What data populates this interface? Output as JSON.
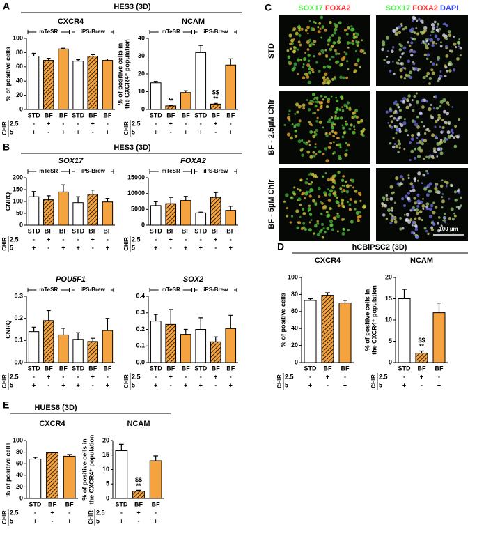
{
  "panels": [
    {
      "letter": "A",
      "title": "HES3 (3D)"
    },
    {
      "letter": "B",
      "title": "HES3 (3D)"
    },
    {
      "letter": "C"
    },
    {
      "letter": "D",
      "title": "hCBiPSC2 (3D)"
    },
    {
      "letter": "E",
      "title": "HUES8 (3D)"
    }
  ],
  "microscopy": {
    "columns": [
      [
        {
          "text": "SOX17",
          "color": "#55ee55"
        },
        {
          "text": "FOXA2",
          "color": "#ff3333"
        }
      ],
      [
        {
          "text": "SOX17",
          "color": "#55ee55"
        },
        {
          "text": "FOXA2",
          "color": "#ff3333"
        },
        {
          "text": "DAPI",
          "color": "#3344ff"
        }
      ]
    ],
    "rows": [
      "STD",
      "BF - 2.5µM Chir",
      "BF - 5µM Chir"
    ],
    "scale_bar": "100 µm"
  },
  "chart_data": [
    {
      "type": "bar",
      "title": "CXCR4",
      "ylabel": [
        "% of positive cells"
      ],
      "categories": [
        "STD",
        "BF",
        "BF",
        "STD",
        "BF",
        "BF"
      ],
      "values": [
        75,
        69,
        85,
        68,
        75,
        69
      ],
      "errors": [
        4,
        3,
        1,
        2,
        2,
        2
      ],
      "colors": [
        "#ffffff",
        "#f5a33f",
        "#f5a33f",
        "#ffffff",
        "#f5a33f",
        "#f5a33f"
      ],
      "hatched": [
        false,
        true,
        false,
        false,
        true,
        false
      ],
      "ylim": [
        0,
        100
      ],
      "yticks": [
        0,
        20,
        40,
        60,
        80,
        100
      ],
      "groups": [
        {
          "name": "mTeSR",
          "span": [
            0,
            2
          ]
        },
        {
          "name": "iPS-Brew",
          "span": [
            3,
            5
          ]
        }
      ],
      "conditions": {
        "label": "CHIR",
        "rows": [
          {
            "name": "2.5",
            "marks": [
              "-",
              "+",
              "-",
              "-",
              "+",
              "-"
            ]
          },
          {
            "name": "5",
            "marks": [
              "+",
              "-",
              "+",
              "+",
              "-",
              "+"
            ]
          }
        ]
      }
    },
    {
      "type": "bar",
      "title": "NCAM",
      "ylabel": [
        "% of positive cells in",
        "the CXCR4⁺ population"
      ],
      "categories": [
        "STD",
        "BF",
        "BF",
        "STD",
        "BF",
        "BF"
      ],
      "values": [
        15,
        2,
        9.5,
        32,
        3,
        25
      ],
      "errors": [
        0.8,
        0.4,
        1,
        4,
        0.4,
        3.5
      ],
      "colors": [
        "#ffffff",
        "#f5a33f",
        "#f5a33f",
        "#ffffff",
        "#f5a33f",
        "#f5a33f"
      ],
      "hatched": [
        false,
        true,
        false,
        false,
        true,
        false
      ],
      "ylim": [
        0,
        40
      ],
      "yticks": [
        0,
        10,
        20,
        30,
        40
      ],
      "annotations": [
        null,
        [
          "**"
        ],
        null,
        null,
        [
          "$$",
          "**"
        ],
        null
      ],
      "groups": [
        {
          "name": "mTeSR",
          "span": [
            0,
            2
          ]
        },
        {
          "name": "iPS-Brew",
          "span": [
            3,
            5
          ]
        }
      ],
      "conditions": {
        "label": "CHIR",
        "rows": [
          {
            "name": "2.5",
            "marks": [
              "-",
              "+",
              "-",
              "-",
              "+",
              "-"
            ]
          },
          {
            "name": "5",
            "marks": [
              "+",
              "-",
              "+",
              "+",
              "-",
              "+"
            ]
          }
        ]
      }
    },
    {
      "type": "bar",
      "title": "SOX17",
      "title_italic": true,
      "ylabel": [
        "CNRQ"
      ],
      "categories": [
        "STD",
        "BF",
        "BF",
        "STD",
        "BF",
        "BF"
      ],
      "values": [
        120,
        107,
        140,
        95,
        130,
        98
      ],
      "errors": [
        22,
        17,
        30,
        25,
        18,
        15
      ],
      "colors": [
        "#ffffff",
        "#f5a33f",
        "#f5a33f",
        "#ffffff",
        "#f5a33f",
        "#f5a33f"
      ],
      "hatched": [
        false,
        true,
        false,
        false,
        true,
        false
      ],
      "ylim": [
        0,
        200
      ],
      "yticks": [
        0,
        50,
        100,
        150,
        200
      ],
      "groups": [
        {
          "name": "mTeSR",
          "span": [
            0,
            2
          ]
        },
        {
          "name": "iPS-Brew",
          "span": [
            3,
            5
          ]
        }
      ],
      "conditions": {
        "label": "CHIR",
        "rows": [
          {
            "name": "2.5",
            "marks": [
              "-",
              "+",
              "-",
              "-",
              "+",
              "-"
            ]
          },
          {
            "name": "5",
            "marks": [
              "+",
              "-",
              "+",
              "+",
              "-",
              "+"
            ]
          }
        ]
      }
    },
    {
      "type": "bar",
      "title": "FOXA2",
      "title_italic": true,
      "categories": [
        "STD",
        "BF",
        "BF",
        "STD",
        "BF",
        "BF"
      ],
      "values": [
        6200,
        6800,
        7800,
        3900,
        8800,
        4700
      ],
      "errors": [
        1200,
        2000,
        1300,
        250,
        1500,
        1300
      ],
      "colors": [
        "#ffffff",
        "#f5a33f",
        "#f5a33f",
        "#ffffff",
        "#f5a33f",
        "#f5a33f"
      ],
      "hatched": [
        false,
        true,
        false,
        false,
        true,
        false
      ],
      "ylim": [
        0,
        15000
      ],
      "yticks": [
        0,
        5000,
        10000,
        15000
      ],
      "groups": [
        {
          "name": "mTeSR",
          "span": [
            0,
            2
          ]
        },
        {
          "name": "iPS-Brew",
          "span": [
            3,
            5
          ]
        }
      ],
      "conditions": {
        "label": "CHIR",
        "rows": [
          {
            "name": "2.5",
            "marks": [
              "-",
              "+",
              "-",
              "-",
              "+",
              "-"
            ]
          },
          {
            "name": "5",
            "marks": [
              "+",
              "-",
              "+",
              "+",
              "-",
              "+"
            ]
          }
        ]
      }
    },
    {
      "type": "bar",
      "title": "POU5F1",
      "title_italic": true,
      "ylabel": [
        "CNRQ"
      ],
      "categories": [
        "STD",
        "BF",
        "BF",
        "STD",
        "BF",
        "BF"
      ],
      "values": [
        0.14,
        0.19,
        0.125,
        0.105,
        0.095,
        0.145
      ],
      "errors": [
        0.02,
        0.045,
        0.03,
        0.03,
        0.015,
        0.055
      ],
      "colors": [
        "#ffffff",
        "#f5a33f",
        "#f5a33f",
        "#ffffff",
        "#f5a33f",
        "#f5a33f"
      ],
      "hatched": [
        false,
        true,
        false,
        false,
        true,
        false
      ],
      "ylim": [
        0,
        0.3
      ],
      "yticks": [
        {
          "value": 0,
          "label": "0.0"
        },
        0.1,
        0.2,
        0.3
      ],
      "groups": [
        {
          "name": "mTeSR",
          "span": [
            0,
            2
          ]
        },
        {
          "name": "iPS-Brew",
          "span": [
            3,
            5
          ]
        }
      ],
      "conditions": {
        "label": "CHIR",
        "rows": [
          {
            "name": "2.5",
            "marks": [
              "-",
              "+",
              "-",
              "-",
              "+",
              "-"
            ]
          },
          {
            "name": "5",
            "marks": [
              "+",
              "-",
              "+",
              "+",
              "-",
              "+"
            ]
          }
        ]
      }
    },
    {
      "type": "bar",
      "title": "SOX2",
      "title_italic": true,
      "categories": [
        "STD",
        "BF",
        "BF",
        "STD",
        "BF",
        "BF"
      ],
      "values": [
        0.25,
        0.23,
        0.17,
        0.2,
        0.125,
        0.205
      ],
      "errors": [
        0.04,
        0.09,
        0.03,
        0.07,
        0.03,
        0.08
      ],
      "colors": [
        "#ffffff",
        "#f5a33f",
        "#f5a33f",
        "#ffffff",
        "#f5a33f",
        "#f5a33f"
      ],
      "hatched": [
        false,
        true,
        false,
        false,
        true,
        false
      ],
      "ylim": [
        0,
        0.4
      ],
      "yticks": [
        {
          "value": 0,
          "label": "0.0"
        },
        0.1,
        0.2,
        0.3,
        0.4
      ],
      "groups": [
        {
          "name": "mTeSR",
          "span": [
            0,
            2
          ]
        },
        {
          "name": "iPS-Brew",
          "span": [
            3,
            5
          ]
        }
      ],
      "conditions": {
        "label": "CHIR",
        "rows": [
          {
            "name": "2.5",
            "marks": [
              "-",
              "+",
              "-",
              "-",
              "+",
              "-"
            ]
          },
          {
            "name": "5",
            "marks": [
              "+",
              "-",
              "+",
              "+",
              "-",
              "+"
            ]
          }
        ]
      }
    },
    {
      "type": "bar",
      "title": "CXCR4",
      "ylabel": [
        "% of positive cells"
      ],
      "categories": [
        "STD",
        "BF",
        "BF"
      ],
      "values": [
        73,
        79,
        70
      ],
      "errors": [
        2,
        3,
        3
      ],
      "colors": [
        "#ffffff",
        "#f5a33f",
        "#f5a33f"
      ],
      "hatched": [
        false,
        true,
        false
      ],
      "ylim": [
        0,
        100
      ],
      "yticks": [
        0,
        20,
        40,
        60,
        80,
        100
      ],
      "conditions": {
        "label": "CHIR",
        "rows": [
          {
            "name": "2.5",
            "marks": [
              "-",
              "+",
              "-"
            ]
          },
          {
            "name": "5",
            "marks": [
              "+",
              "-",
              "+"
            ]
          }
        ]
      }
    },
    {
      "type": "bar",
      "title": "NCAM",
      "ylabel": [
        "% of positive cells in",
        "the CXCR4⁺ population"
      ],
      "categories": [
        "STD",
        "BF",
        "BF"
      ],
      "values": [
        15,
        2.2,
        11.7
      ],
      "errors": [
        2.2,
        0.5,
        2.3
      ],
      "colors": [
        "#ffffff",
        "#f5a33f",
        "#f5a33f"
      ],
      "hatched": [
        false,
        true,
        false
      ],
      "ylim": [
        0,
        20
      ],
      "yticks": [
        0,
        5,
        10,
        15,
        20
      ],
      "annotations": [
        null,
        [
          "$$",
          "**"
        ],
        null
      ],
      "conditions": {
        "label": "CHIR",
        "rows": [
          {
            "name": "2.5",
            "marks": [
              "-",
              "+",
              "-"
            ]
          },
          {
            "name": "5",
            "marks": [
              "+",
              "-",
              "+"
            ]
          }
        ]
      }
    },
    {
      "type": "bar",
      "title": "CXCR4",
      "ylabel": [
        "% of positive cells"
      ],
      "categories": [
        "STD",
        "BF",
        "BF"
      ],
      "values": [
        68,
        79,
        73
      ],
      "errors": [
        3,
        1,
        3
      ],
      "colors": [
        "#ffffff",
        "#f5a33f",
        "#f5a33f"
      ],
      "hatched": [
        false,
        true,
        false
      ],
      "ylim": [
        0,
        100
      ],
      "yticks": [
        0,
        20,
        40,
        60,
        80,
        100
      ],
      "conditions": {
        "label": "CHIR",
        "rows": [
          {
            "name": "2.5",
            "marks": [
              "-",
              "+",
              "-"
            ]
          },
          {
            "name": "5",
            "marks": [
              "+",
              "-",
              "+"
            ]
          }
        ]
      }
    },
    {
      "type": "bar",
      "title": "NCAM",
      "ylabel": [
        "% of positive cells in",
        "the CXCR4⁺ population"
      ],
      "categories": [
        "STD",
        "BF",
        "BF"
      ],
      "values": [
        16.5,
        2.5,
        13
      ],
      "errors": [
        2.2,
        0.3,
        1.7
      ],
      "colors": [
        "#ffffff",
        "#f5a33f",
        "#f5a33f"
      ],
      "hatched": [
        false,
        true,
        false
      ],
      "ylim": [
        0,
        20
      ],
      "yticks": [
        0,
        5,
        10,
        15,
        20
      ],
      "annotations": [
        null,
        [
          "$$",
          "**"
        ],
        null
      ],
      "conditions": {
        "label": "CHIR",
        "rows": [
          {
            "name": "2.5",
            "marks": [
              "-",
              "+",
              "-"
            ]
          },
          {
            "name": "5",
            "marks": [
              "+",
              "-",
              "+"
            ]
          }
        ]
      }
    }
  ]
}
